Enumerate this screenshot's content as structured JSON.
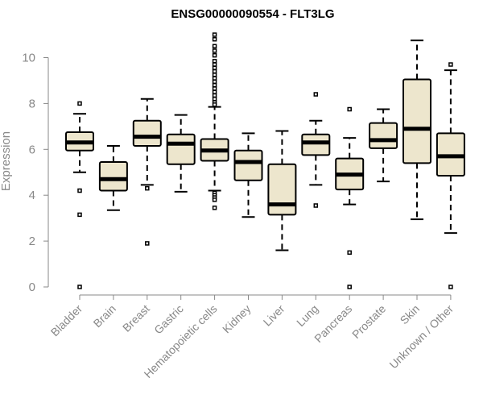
{
  "chart_data": {
    "type": "boxplot",
    "title": "ENSG00000090554 - FLT3LG",
    "xlabel": "",
    "ylabel": "Expression",
    "ylim": [
      0,
      10.5
    ],
    "yticks": [
      0,
      2,
      4,
      6,
      8,
      10
    ],
    "categories": [
      "Bladder",
      "Brain",
      "Breast",
      "Gastric",
      "Hematopoietic cells",
      "Kidney",
      "Liver",
      "Lung",
      "Pancreas",
      "Prostate",
      "Skin",
      "Unknown / Other"
    ],
    "boxes": [
      {
        "category": "Bladder",
        "min": 5.0,
        "q1": 5.95,
        "median": 6.3,
        "q3": 6.75,
        "max": 7.55,
        "outliers": [
          8.0,
          4.2,
          3.15,
          0.0
        ]
      },
      {
        "category": "Brain",
        "min": 3.35,
        "q1": 4.2,
        "median": 4.7,
        "q3": 5.45,
        "max": 6.15,
        "outliers": []
      },
      {
        "category": "Breast",
        "min": 4.45,
        "q1": 6.15,
        "median": 6.55,
        "q3": 7.25,
        "max": 8.2,
        "outliers": [
          4.3,
          1.9
        ]
      },
      {
        "category": "Gastric",
        "min": 4.15,
        "q1": 5.35,
        "median": 6.25,
        "q3": 6.65,
        "max": 7.5,
        "outliers": []
      },
      {
        "category": "Hematopoietic cells",
        "min": 4.2,
        "q1": 5.5,
        "median": 5.95,
        "q3": 6.45,
        "max": 7.85,
        "outliers": [
          11.0,
          10.8,
          10.5,
          10.3,
          10.1,
          9.85,
          9.7,
          9.55,
          9.4,
          9.25,
          9.1,
          8.95,
          8.8,
          8.65,
          8.5,
          8.35,
          8.2,
          8.05,
          7.95,
          4.1,
          4.0,
          3.9,
          3.8,
          3.45
        ]
      },
      {
        "category": "Kidney",
        "min": 3.05,
        "q1": 4.65,
        "median": 5.45,
        "q3": 5.95,
        "max": 6.7,
        "outliers": []
      },
      {
        "category": "Liver",
        "min": 1.6,
        "q1": 3.15,
        "median": 3.6,
        "q3": 5.35,
        "max": 6.8,
        "outliers": []
      },
      {
        "category": "Lung",
        "min": 4.45,
        "q1": 5.75,
        "median": 6.3,
        "q3": 6.65,
        "max": 7.25,
        "outliers": [
          8.4,
          3.55
        ]
      },
      {
        "category": "Pancreas",
        "min": 3.6,
        "q1": 4.25,
        "median": 4.9,
        "q3": 5.6,
        "max": 6.5,
        "outliers": [
          7.75,
          1.5,
          0.0
        ]
      },
      {
        "category": "Prostate",
        "min": 4.6,
        "q1": 6.05,
        "median": 6.4,
        "q3": 7.15,
        "max": 7.75,
        "outliers": []
      },
      {
        "category": "Skin",
        "min": 2.95,
        "q1": 5.4,
        "median": 6.9,
        "q3": 9.05,
        "max": 10.75,
        "outliers": []
      },
      {
        "category": "Unknown / Other",
        "min": 2.35,
        "q1": 4.85,
        "median": 5.7,
        "q3": 6.7,
        "max": 9.45,
        "outliers": [
          9.7,
          0.0
        ]
      }
    ],
    "colors": {
      "box_fill": "#ede6cd",
      "box_stroke": "#000000",
      "axis": "#888888"
    }
  }
}
